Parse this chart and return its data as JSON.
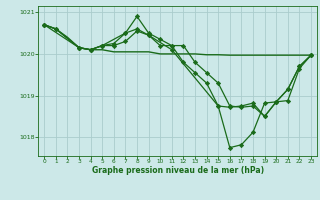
{
  "title": "Graphe pression niveau de la mer (hPa)",
  "background_color": "#cce8e8",
  "grid_color": "#aacccc",
  "line_color": "#1a6b1a",
  "xlim": [
    -0.5,
    23.5
  ],
  "ylim": [
    1017.55,
    1021.15
  ],
  "yticks": [
    1018,
    1019,
    1020,
    1021
  ],
  "xticks": [
    0,
    1,
    2,
    3,
    4,
    5,
    6,
    7,
    8,
    9,
    10,
    11,
    12,
    13,
    14,
    15,
    16,
    17,
    18,
    19,
    20,
    21,
    22,
    23
  ],
  "series": [
    {
      "x": [
        0,
        1,
        2,
        3,
        4,
        5,
        6,
        7,
        8,
        9,
        10,
        11,
        12,
        13,
        14,
        15,
        16,
        17,
        18,
        19,
        20,
        21,
        22,
        23
      ],
      "y": [
        1020.7,
        1020.6,
        1020.4,
        1020.15,
        1020.1,
        1020.1,
        1020.05,
        1020.05,
        1020.05,
        1020.05,
        1020.0,
        1020.0,
        1020.0,
        1020.0,
        1019.98,
        1019.98,
        1019.97,
        1019.97,
        1019.97,
        1019.97,
        1019.97,
        1019.97,
        1019.97,
        1019.97
      ],
      "marker": null,
      "lw": 1.0
    },
    {
      "x": [
        0,
        1,
        3,
        4,
        5,
        6,
        7,
        8,
        9,
        10,
        11,
        12,
        13,
        14,
        15,
        16,
        17,
        18,
        19,
        20,
        21,
        22,
        23
      ],
      "y": [
        1020.7,
        1020.6,
        1020.15,
        1020.1,
        1020.2,
        1020.25,
        1020.5,
        1020.9,
        1020.5,
        1020.35,
        1020.2,
        1020.2,
        1019.8,
        1019.55,
        1019.3,
        1018.75,
        1018.72,
        1018.75,
        1018.5,
        1018.85,
        1019.15,
        1019.7,
        1019.97
      ],
      "marker": "D",
      "lw": 0.9
    },
    {
      "x": [
        0,
        1,
        3,
        4,
        5,
        6,
        7,
        8,
        9,
        10,
        11,
        12,
        13,
        14,
        15,
        16,
        17,
        18,
        19,
        20,
        21,
        22,
        23
      ],
      "y": [
        1020.7,
        1020.6,
        1020.15,
        1020.1,
        1020.2,
        1020.2,
        1020.3,
        1020.55,
        1020.45,
        1020.2,
        1020.2,
        1019.8,
        1019.55,
        1019.3,
        1018.75,
        1018.72,
        1018.75,
        1018.82,
        1018.5,
        1018.85,
        1019.15,
        1019.7,
        1019.97
      ],
      "marker": "D",
      "lw": 0.9
    },
    {
      "x": [
        0,
        3,
        4,
        5,
        7,
        8,
        9,
        11,
        15,
        16,
        17,
        18,
        19,
        20,
        21,
        22,
        23
      ],
      "y": [
        1020.7,
        1020.15,
        1020.1,
        1020.2,
        1020.5,
        1020.6,
        1020.45,
        1020.1,
        1018.75,
        1017.75,
        1017.82,
        1018.12,
        1018.82,
        1018.85,
        1018.88,
        1019.65,
        1019.97
      ],
      "marker": "D",
      "lw": 0.9
    }
  ]
}
